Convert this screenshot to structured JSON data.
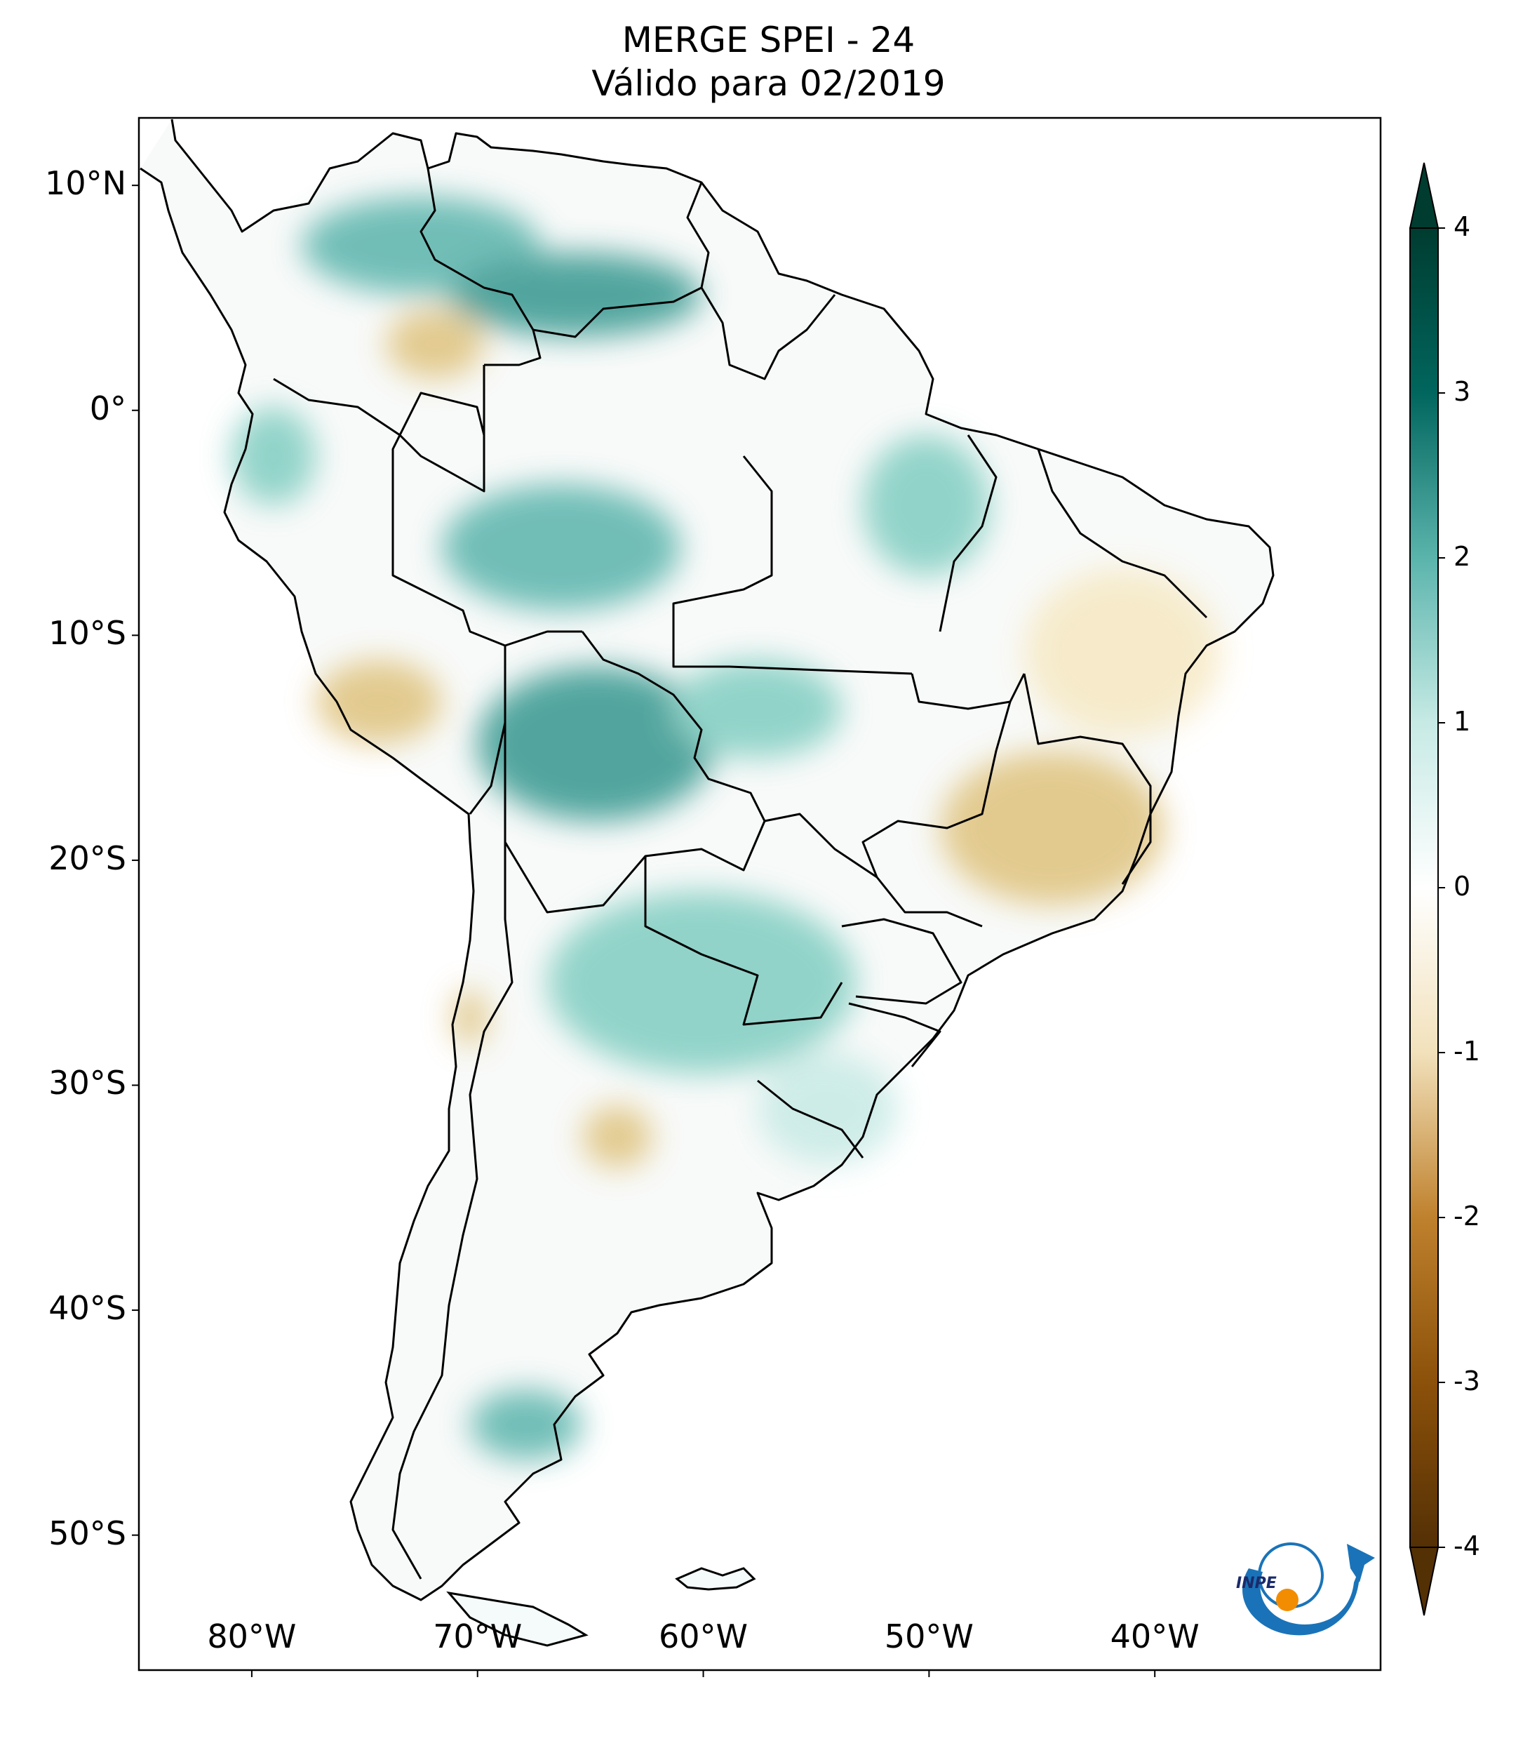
{
  "title": "MERGE   SPEI - 24",
  "subtitle": "Válido para 02/2019",
  "map": {
    "region": "South America",
    "projection": "PlateCarree",
    "lon_range": [
      -85,
      -30
    ],
    "lat_range": [
      -56,
      13
    ],
    "lat_ticks": [
      {
        "value": 10,
        "label": "10°N"
      },
      {
        "value": 0,
        "label": "0°"
      },
      {
        "value": -10,
        "label": "10°S"
      },
      {
        "value": -20,
        "label": "20°S"
      },
      {
        "value": -30,
        "label": "30°S"
      },
      {
        "value": -40,
        "label": "40°S"
      },
      {
        "value": -50,
        "label": "50°S"
      }
    ],
    "lon_ticks": [
      {
        "value": -80,
        "label": "80°W"
      },
      {
        "value": -70,
        "label": "70°W"
      },
      {
        "value": -60,
        "label": "60°W"
      },
      {
        "value": -50,
        "label": "50°W"
      },
      {
        "value": -40,
        "label": "40°W"
      }
    ],
    "colormap": "BrBG",
    "colors": {
      "wet": "#1e8a7c",
      "dry": "#c9a060",
      "neutral": "#ffffff",
      "border": "#000000"
    }
  },
  "colorbar": {
    "range": [
      -4,
      4
    ],
    "extend": "both",
    "ticks": [
      {
        "value": 4,
        "label": "4"
      },
      {
        "value": 3,
        "label": "3"
      },
      {
        "value": 2,
        "label": "2"
      },
      {
        "value": 1,
        "label": "1"
      },
      {
        "value": 0,
        "label": "0"
      },
      {
        "value": -1,
        "label": "-1"
      },
      {
        "value": -2,
        "label": "-2"
      },
      {
        "value": -3,
        "label": "-3"
      },
      {
        "value": -4,
        "label": "-4"
      }
    ],
    "stops": [
      {
        "value": -4,
        "color": "#543005"
      },
      {
        "value": -3,
        "color": "#8c510a"
      },
      {
        "value": -2,
        "color": "#bf812d"
      },
      {
        "value": -1,
        "color": "#f2e1bb"
      },
      {
        "value": 0,
        "color": "#ffffff"
      },
      {
        "value": 1,
        "color": "#c7eae5"
      },
      {
        "value": 2,
        "color": "#5ab4ac"
      },
      {
        "value": 3,
        "color": "#01665e"
      },
      {
        "value": 4,
        "color": "#003c30"
      }
    ]
  },
  "logo": {
    "text": "INPE",
    "icon": "inpe-logo-icon"
  }
}
